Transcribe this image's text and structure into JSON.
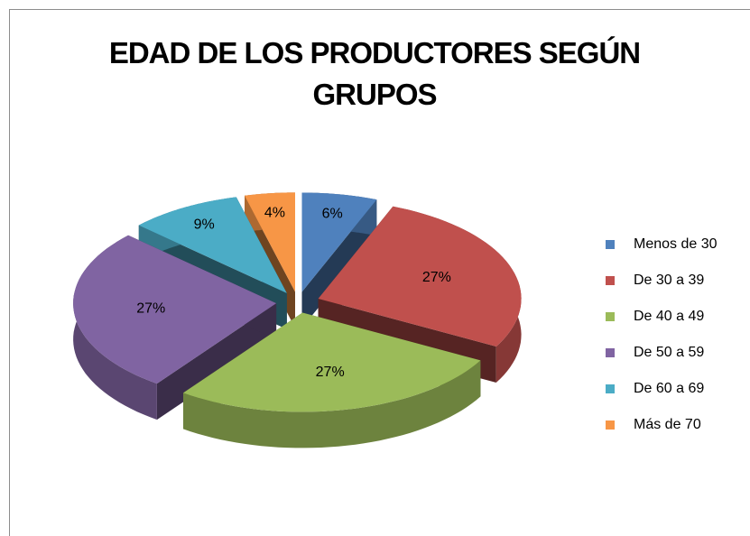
{
  "chart_data": {
    "type": "pie3d",
    "title": "EDAD DE LOS PRODUCTORES SEGÚN GRUPOS",
    "categories": [
      "Menos de 30",
      "De 30 a 39",
      "De 40 a 49",
      "De 50 a 59",
      "De 60 a 69",
      "Más de 70"
    ],
    "values": [
      6,
      27,
      27,
      27,
      9,
      4
    ],
    "value_labels": [
      "6%",
      "27%",
      "27%",
      "27%",
      "9%",
      "4%"
    ],
    "colors": [
      "#4f81bd",
      "#c0504d",
      "#9bbb59",
      "#8064a2",
      "#4bacc6",
      "#f79646"
    ],
    "legend": "right"
  }
}
